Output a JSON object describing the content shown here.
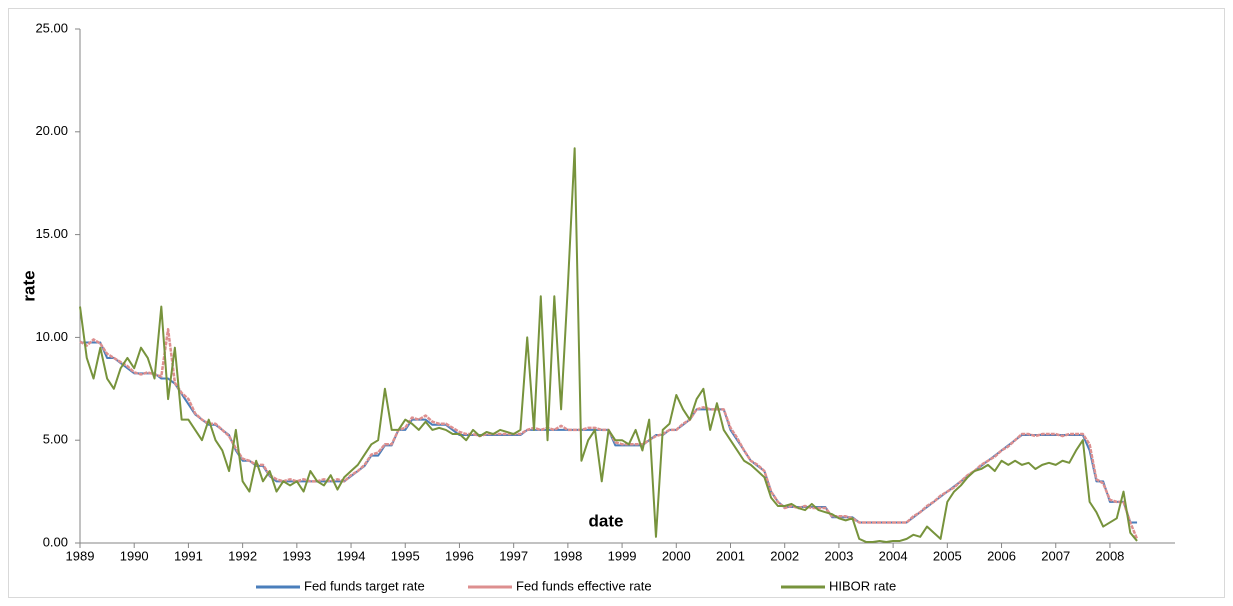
{
  "chart_data": {
    "type": "line",
    "y_label": "rate",
    "x_label": "date",
    "xlim": [
      1989,
      2009.2
    ],
    "ylim": [
      0,
      25
    ],
    "xticks": [
      1989,
      1990,
      1991,
      1992,
      1993,
      1994,
      1995,
      1996,
      1997,
      1998,
      1999,
      2000,
      2001,
      2002,
      2003,
      2004,
      2005,
      2006,
      2007,
      2008
    ],
    "yticks": [
      {
        "value": 0,
        "label": "0.00"
      },
      {
        "value": 5,
        "label": "5.00"
      },
      {
        "value": 10,
        "label": "10.00"
      },
      {
        "value": 15,
        "label": "15.00"
      },
      {
        "value": 20,
        "label": "20.00"
      },
      {
        "value": 25,
        "label": "25.00"
      }
    ],
    "x": [
      1989,
      1989.125,
      1989.25,
      1989.375,
      1989.5,
      1989.625,
      1989.75,
      1989.875,
      1990,
      1990.125,
      1990.25,
      1990.375,
      1990.5,
      1990.625,
      1990.75,
      1990.875,
      1991,
      1991.125,
      1991.25,
      1991.375,
      1991.5,
      1991.625,
      1991.75,
      1991.875,
      1992,
      1992.125,
      1992.25,
      1992.375,
      1992.5,
      1992.625,
      1992.75,
      1992.875,
      1993,
      1993.125,
      1993.25,
      1993.375,
      1993.5,
      1993.625,
      1993.75,
      1993.875,
      1994,
      1994.125,
      1994.25,
      1994.375,
      1994.5,
      1994.625,
      1994.75,
      1994.875,
      1995,
      1995.125,
      1995.25,
      1995.375,
      1995.5,
      1995.625,
      1995.75,
      1995.875,
      1996,
      1996.125,
      1996.25,
      1996.375,
      1996.5,
      1996.625,
      1996.75,
      1996.875,
      1997,
      1997.125,
      1997.25,
      1997.375,
      1997.5,
      1997.625,
      1997.75,
      1997.875,
      1998,
      1998.125,
      1998.25,
      1998.375,
      1998.5,
      1998.625,
      1998.75,
      1998.875,
      1999,
      1999.125,
      1999.25,
      1999.375,
      1999.5,
      1999.625,
      1999.75,
      1999.875,
      2000,
      2000.125,
      2000.25,
      2000.375,
      2000.5,
      2000.625,
      2000.75,
      2000.875,
      2001,
      2001.125,
      2001.25,
      2001.375,
      2001.5,
      2001.625,
      2001.75,
      2001.875,
      2002,
      2002.125,
      2002.25,
      2002.375,
      2002.5,
      2002.625,
      2002.75,
      2002.875,
      2003,
      2003.125,
      2003.25,
      2003.375,
      2003.5,
      2003.625,
      2003.75,
      2003.875,
      2004,
      2004.125,
      2004.25,
      2004.375,
      2004.5,
      2004.625,
      2004.75,
      2004.875,
      2005,
      2005.125,
      2005.25,
      2005.375,
      2005.5,
      2005.625,
      2005.75,
      2005.875,
      2006,
      2006.125,
      2006.25,
      2006.375,
      2006.5,
      2006.625,
      2006.75,
      2006.875,
      2007,
      2007.125,
      2007.25,
      2007.375,
      2007.5,
      2007.625,
      2007.75,
      2007.875,
      2008,
      2008.125,
      2008.25,
      2008.375,
      2008.5
    ],
    "series": [
      {
        "name": "Fed funds target rate",
        "color": "#4a7ebb",
        "values": [
          9.75,
          9.75,
          9.75,
          9.75,
          9.0,
          9.0,
          8.75,
          8.5,
          8.25,
          8.25,
          8.25,
          8.25,
          8.0,
          8.0,
          7.75,
          7.25,
          6.75,
          6.25,
          6.0,
          5.75,
          5.75,
          5.5,
          5.25,
          4.5,
          4.0,
          4.0,
          3.75,
          3.75,
          3.25,
          3.0,
          3.0,
          3.0,
          3.0,
          3.0,
          3.0,
          3.0,
          3.0,
          3.0,
          3.0,
          3.0,
          3.25,
          3.5,
          3.75,
          4.25,
          4.25,
          4.75,
          4.75,
          5.5,
          5.5,
          6.0,
          6.0,
          6.0,
          5.75,
          5.75,
          5.75,
          5.5,
          5.25,
          5.25,
          5.25,
          5.25,
          5.25,
          5.25,
          5.25,
          5.25,
          5.25,
          5.25,
          5.5,
          5.5,
          5.5,
          5.5,
          5.5,
          5.5,
          5.5,
          5.5,
          5.5,
          5.5,
          5.5,
          5.5,
          5.5,
          4.75,
          4.75,
          4.75,
          4.75,
          4.75,
          5.0,
          5.25,
          5.25,
          5.5,
          5.5,
          5.75,
          6.0,
          6.5,
          6.5,
          6.5,
          6.5,
          6.5,
          5.5,
          5.0,
          4.5,
          4.0,
          3.75,
          3.5,
          2.5,
          2.0,
          1.75,
          1.75,
          1.75,
          1.75,
          1.75,
          1.75,
          1.75,
          1.25,
          1.25,
          1.25,
          1.25,
          1.0,
          1.0,
          1.0,
          1.0,
          1.0,
          1.0,
          1.0,
          1.0,
          1.25,
          1.5,
          1.75,
          2.0,
          2.25,
          2.5,
          2.75,
          3.0,
          3.25,
          3.5,
          3.75,
          4.0,
          4.25,
          4.5,
          4.75,
          5.0,
          5.25,
          5.25,
          5.25,
          5.25,
          5.25,
          5.25,
          5.25,
          5.25,
          5.25,
          5.25,
          4.5,
          3.0,
          3.0,
          2.0,
          2.0,
          2.0,
          1.0,
          1.0
        ]
      },
      {
        "name": "Fed funds effective rate",
        "color": "#dd8f8f",
        "values": [
          9.8,
          9.6,
          9.9,
          9.7,
          9.2,
          9.0,
          8.8,
          8.6,
          8.3,
          8.2,
          8.3,
          8.2,
          8.1,
          10.4,
          7.8,
          7.3,
          7.0,
          6.3,
          6.0,
          5.8,
          5.8,
          5.5,
          5.2,
          4.6,
          4.1,
          4.0,
          3.8,
          3.8,
          3.3,
          3.1,
          3.0,
          3.1,
          3.0,
          3.1,
          3.0,
          3.0,
          3.1,
          3.0,
          3.1,
          3.0,
          3.3,
          3.5,
          3.8,
          4.3,
          4.4,
          4.8,
          4.8,
          5.5,
          5.6,
          6.1,
          6.0,
          6.2,
          5.9,
          5.8,
          5.8,
          5.6,
          5.4,
          5.3,
          5.3,
          5.2,
          5.3,
          5.3,
          5.3,
          5.3,
          5.3,
          5.3,
          5.5,
          5.6,
          5.5,
          5.6,
          5.5,
          5.7,
          5.5,
          5.5,
          5.5,
          5.6,
          5.6,
          5.5,
          5.5,
          4.9,
          4.8,
          4.8,
          4.8,
          4.8,
          5.0,
          5.2,
          5.3,
          5.5,
          5.5,
          5.8,
          6.0,
          6.5,
          6.6,
          6.5,
          6.5,
          6.5,
          5.6,
          5.1,
          4.5,
          4.0,
          3.8,
          3.5,
          2.5,
          2.0,
          1.7,
          1.8,
          1.7,
          1.8,
          1.7,
          1.7,
          1.7,
          1.3,
          1.3,
          1.3,
          1.2,
          1.0,
          1.0,
          1.0,
          1.0,
          1.0,
          1.0,
          1.0,
          1.0,
          1.3,
          1.5,
          1.8,
          2.0,
          2.3,
          2.5,
          2.7,
          3.0,
          3.3,
          3.5,
          3.8,
          4.0,
          4.2,
          4.5,
          4.7,
          5.0,
          5.3,
          5.3,
          5.2,
          5.3,
          5.3,
          5.3,
          5.2,
          5.3,
          5.3,
          5.3,
          4.8,
          3.1,
          2.9,
          2.1,
          2.0,
          2.0,
          1.0,
          0.2
        ]
      },
      {
        "name": "HIBOR rate",
        "color": "#77933c",
        "values": [
          11.5,
          9.0,
          8.0,
          9.5,
          8.0,
          7.5,
          8.5,
          9.0,
          8.5,
          9.5,
          9.0,
          8.0,
          11.5,
          7.0,
          9.5,
          6.0,
          6.0,
          5.5,
          5.0,
          6.0,
          5.0,
          4.5,
          3.5,
          5.5,
          3.0,
          2.5,
          4.0,
          3.0,
          3.5,
          2.5,
          3.0,
          2.8,
          3.0,
          2.5,
          3.5,
          3.0,
          2.8,
          3.3,
          2.6,
          3.2,
          3.5,
          3.8,
          4.3,
          4.8,
          5.0,
          7.5,
          5.5,
          5.5,
          6.0,
          5.8,
          5.5,
          5.9,
          5.5,
          5.6,
          5.5,
          5.3,
          5.3,
          5.0,
          5.5,
          5.2,
          5.4,
          5.3,
          5.5,
          5.4,
          5.3,
          5.5,
          10.0,
          5.5,
          12.0,
          5.0,
          12.0,
          6.5,
          12.5,
          19.2,
          4.0,
          5.0,
          5.5,
          3.0,
          5.5,
          5.0,
          5.0,
          4.8,
          5.5,
          4.5,
          6.0,
          0.3,
          5.5,
          5.8,
          7.2,
          6.5,
          6.0,
          7.0,
          7.5,
          5.5,
          6.8,
          5.5,
          5.0,
          4.5,
          4.0,
          3.8,
          3.5,
          3.2,
          2.2,
          1.8,
          1.8,
          1.9,
          1.7,
          1.6,
          1.9,
          1.6,
          1.5,
          1.4,
          1.2,
          1.1,
          1.2,
          0.2,
          0.05,
          0.05,
          0.1,
          0.05,
          0.1,
          0.1,
          0.2,
          0.4,
          0.3,
          0.8,
          0.5,
          0.2,
          2.0,
          2.5,
          2.8,
          3.2,
          3.5,
          3.6,
          3.8,
          3.5,
          4.0,
          3.8,
          4.0,
          3.8,
          3.9,
          3.6,
          3.8,
          3.9,
          3.8,
          4.0,
          3.9,
          4.5,
          5.0,
          2.0,
          1.5,
          0.8,
          1.0,
          1.2,
          2.5,
          0.5,
          0.1
        ]
      }
    ]
  }
}
